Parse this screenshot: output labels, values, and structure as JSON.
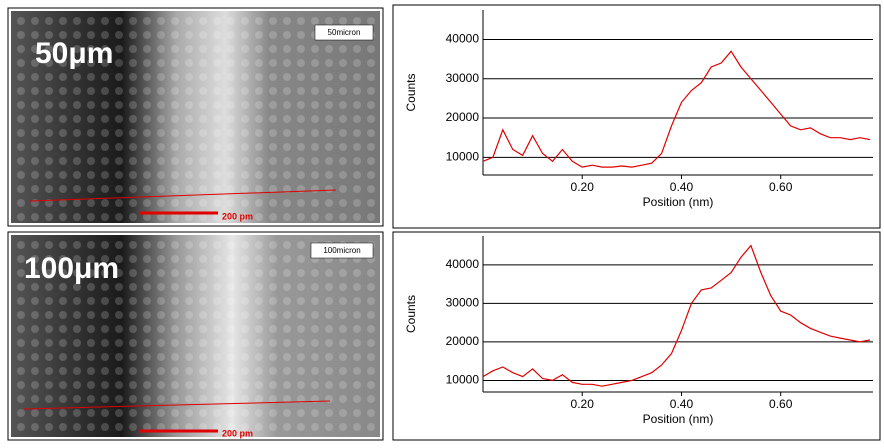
{
  "images": [
    {
      "label": "50μm",
      "tag": "50micron",
      "scale_bar": "200 pm"
    },
    {
      "label": "100μm",
      "tag": "100micron",
      "scale_bar": "200 pm"
    }
  ],
  "chart_data": [
    {
      "type": "line",
      "xlabel": "Position (nm)",
      "ylabel": "Counts",
      "xlim": [
        0,
        0.786
      ],
      "ylim": [
        5500,
        47500
      ],
      "xticks": [
        {
          "value": 0.2,
          "label": "0.20"
        },
        {
          "value": 0.4,
          "label": "0.40"
        },
        {
          "value": 0.6,
          "label": "0.60"
        }
      ],
      "yticks": [
        10000,
        20000,
        30000,
        40000
      ],
      "grid": true,
      "x": [
        0,
        0.02,
        0.04,
        0.06,
        0.08,
        0.1,
        0.12,
        0.14,
        0.16,
        0.18,
        0.2,
        0.22,
        0.24,
        0.26,
        0.28,
        0.3,
        0.32,
        0.34,
        0.36,
        0.38,
        0.4,
        0.42,
        0.44,
        0.46,
        0.48,
        0.5,
        0.52,
        0.54,
        0.56,
        0.58,
        0.6,
        0.62,
        0.64,
        0.66,
        0.68,
        0.7,
        0.72,
        0.74,
        0.76,
        0.78
      ],
      "series": [
        {
          "color": "#e00000",
          "values": [
            9000,
            10000,
            17000,
            12000,
            10500,
            15500,
            11000,
            9000,
            12000,
            9000,
            7500,
            8000,
            7500,
            7500,
            7800,
            7500,
            8000,
            8500,
            11000,
            18000,
            24000,
            27000,
            29000,
            33000,
            34000,
            37000,
            33000,
            30000,
            27000,
            24000,
            21000,
            18000,
            17000,
            17500,
            16000,
            15000,
            15000,
            14500,
            15000,
            14500
          ]
        }
      ]
    },
    {
      "type": "line",
      "xlabel": "Position (nm)",
      "ylabel": "Counts",
      "xlim": [
        0,
        0.786
      ],
      "ylim": [
        7000,
        47500
      ],
      "xticks": [
        {
          "value": 0.2,
          "label": "0.20"
        },
        {
          "value": 0.4,
          "label": "0.40"
        },
        {
          "value": 0.6,
          "label": "0.60"
        }
      ],
      "yticks": [
        10000,
        20000,
        30000,
        40000
      ],
      "grid": true,
      "x": [
        0,
        0.02,
        0.04,
        0.06,
        0.08,
        0.1,
        0.12,
        0.14,
        0.16,
        0.18,
        0.2,
        0.22,
        0.24,
        0.26,
        0.28,
        0.3,
        0.32,
        0.34,
        0.36,
        0.38,
        0.4,
        0.42,
        0.44,
        0.46,
        0.48,
        0.5,
        0.52,
        0.54,
        0.56,
        0.58,
        0.6,
        0.62,
        0.64,
        0.66,
        0.68,
        0.7,
        0.72,
        0.74,
        0.76,
        0.78
      ],
      "series": [
        {
          "color": "#e00000",
          "values": [
            11000,
            12500,
            13500,
            12000,
            11000,
            13000,
            10500,
            10000,
            11500,
            9500,
            9000,
            9000,
            8500,
            9000,
            9500,
            10000,
            11000,
            12000,
            14000,
            17000,
            23000,
            30000,
            33500,
            34000,
            36000,
            38000,
            42000,
            45000,
            38000,
            32000,
            28000,
            27000,
            25000,
            23500,
            22500,
            21500,
            21000,
            20500,
            20000,
            20500
          ]
        }
      ]
    }
  ]
}
